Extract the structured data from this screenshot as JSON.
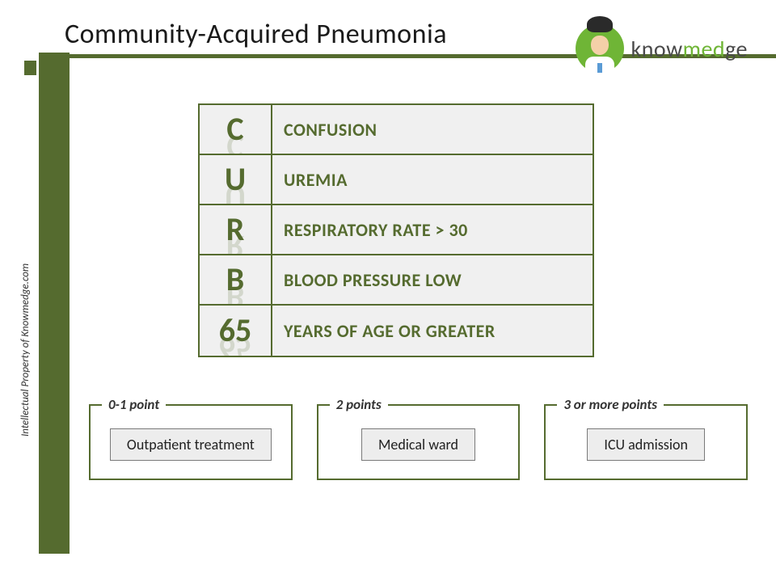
{
  "title": "Community-Acquired Pneumonia",
  "copyright": "Intellectual Property of Knowmedge.com",
  "brand": {
    "prefix": "know",
    "accent": "med",
    "suffix": "ge"
  },
  "colors": {
    "olive": "#556b2f",
    "light_bg": "#f0f0f0",
    "logo_green": "#6fb536"
  },
  "curb": [
    {
      "letter": "C",
      "desc": "CONFUSION"
    },
    {
      "letter": "U",
      "desc": "UREMIA"
    },
    {
      "letter": "R",
      "desc": "RESPIRATORY RATE > 30"
    },
    {
      "letter": "B",
      "desc": "BLOOD PRESSURE LOW"
    },
    {
      "letter": "65",
      "desc": "YEARS OF AGE OR GREATER"
    }
  ],
  "scores": [
    {
      "legend": "0-1 point",
      "action": "Outpatient treatment"
    },
    {
      "legend": "2 points",
      "action": "Medical ward"
    },
    {
      "legend": "3 or more points",
      "action": "ICU admission"
    }
  ]
}
